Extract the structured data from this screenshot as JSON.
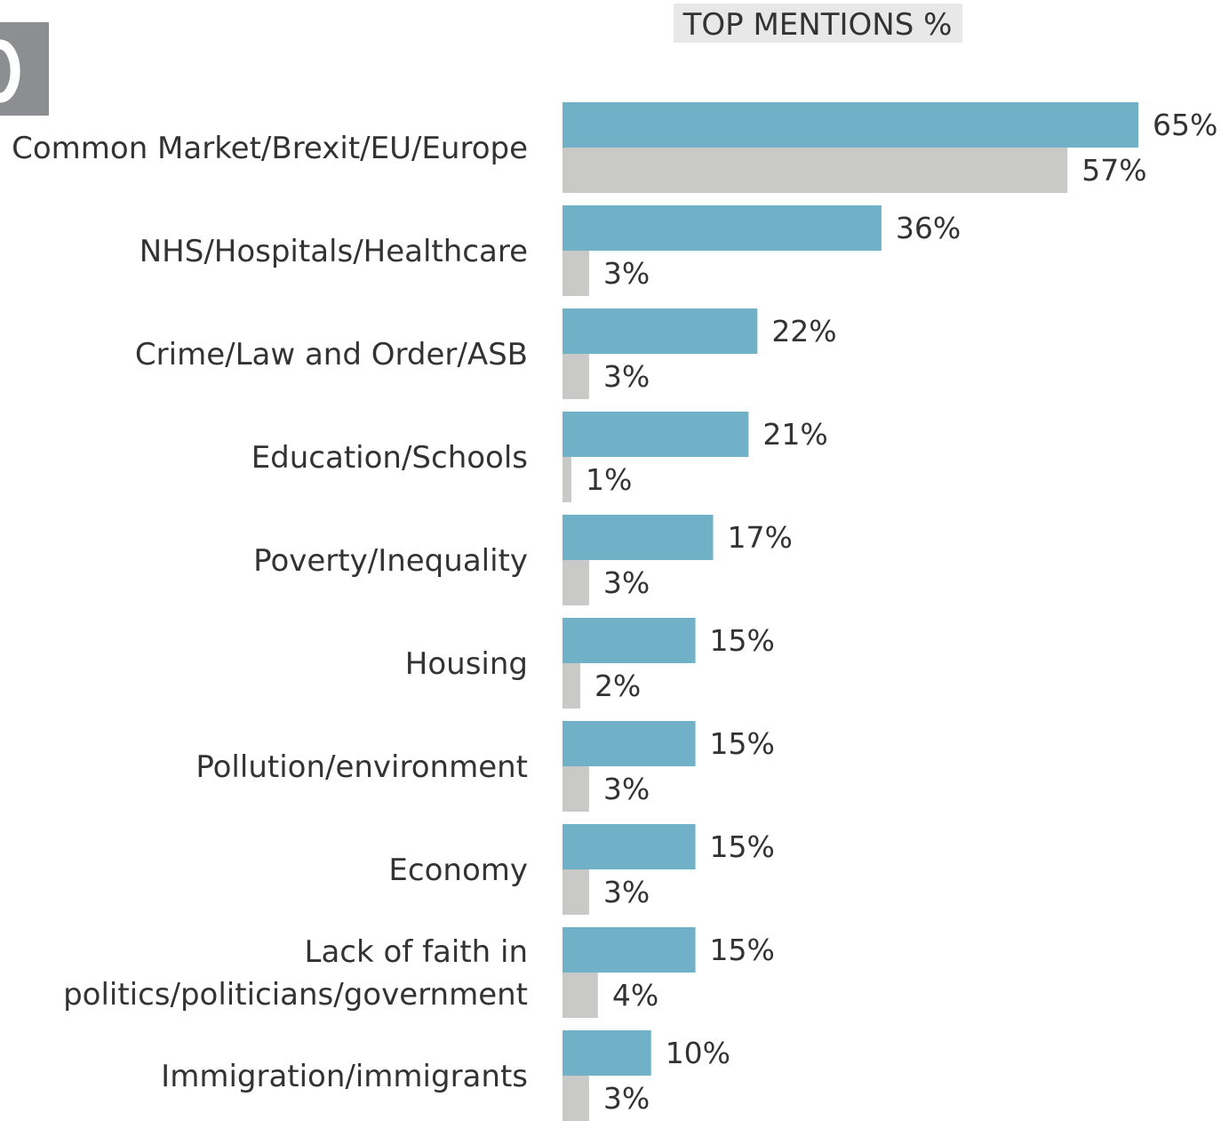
{
  "chart_data": {
    "type": "bar",
    "orientation": "horizontal",
    "header": "TOP MENTIONS %",
    "categories": [
      [
        "Common Market/Brexit/EU/Europe"
      ],
      [
        "NHS/Hospitals/Healthcare"
      ],
      [
        "Crime/Law and Order/ASB"
      ],
      [
        "Education/Schools"
      ],
      [
        "Poverty/Inequality"
      ],
      [
        "Housing"
      ],
      [
        "Pollution/environment"
      ],
      [
        "Economy"
      ],
      [
        "Lack of faith in",
        "politics/politicians/government"
      ],
      [
        "Immigration/immigrants"
      ]
    ],
    "series": [
      {
        "color": "#70b1c8",
        "values": [
          65,
          36,
          22,
          21,
          17,
          15,
          15,
          15,
          15,
          10
        ],
        "labels": [
          "65%",
          "36%",
          "22%",
          "21%",
          "17%",
          "15%",
          "15%",
          "15%",
          "15%",
          "10%"
        ]
      },
      {
        "color": "#c9c9c7",
        "values": [
          57,
          3,
          3,
          1,
          3,
          2,
          3,
          3,
          4,
          3
        ],
        "labels": [
          "57%",
          "3%",
          "3%",
          "1%",
          "3%",
          "2%",
          "3%",
          "3%",
          "4%",
          "3%"
        ]
      }
    ],
    "xlim": [
      0,
      65
    ],
    "grid": false,
    "legend": "none"
  },
  "colors": {
    "header_bg": "#e8e8e8",
    "corner_block": "#8c8e91",
    "text": "#333333"
  }
}
